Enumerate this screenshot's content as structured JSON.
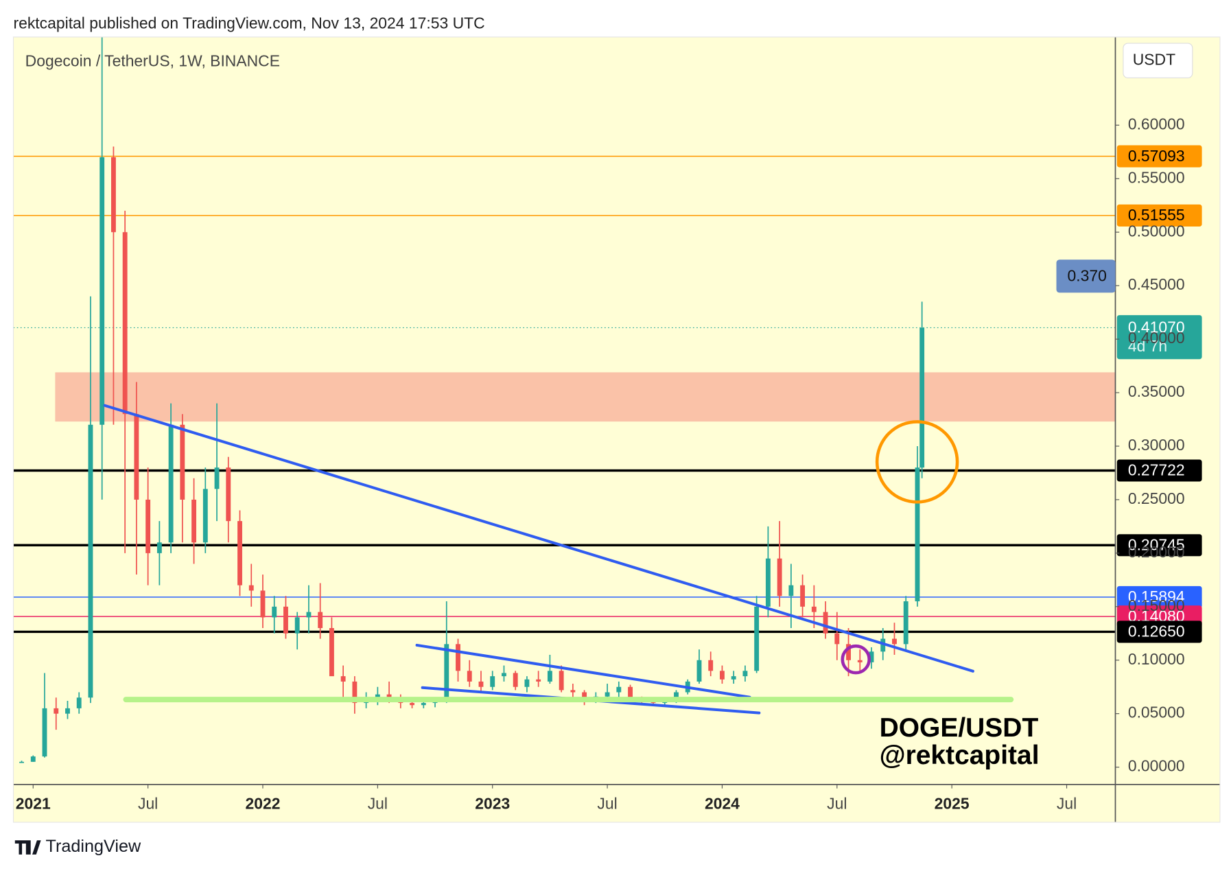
{
  "header": "rektcapital published on TradingView.com, Nov 13, 2024 17:53 UTC",
  "footer": "TradingView",
  "chart_data": {
    "type": "candlestick",
    "title": "Dogecoin / TetherUS, 1W, BINANCE",
    "currency": "USDT",
    "up_color": "#26a69a",
    "down_color": "#ef5350",
    "xlim": [
      2020.914,
      2025.712
    ],
    "xticks": [
      2021,
      {
        "value": 2021.5,
        "label": "Jul"
      },
      2022,
      {
        "value": 2022.5,
        "label": "Jul"
      },
      2023,
      {
        "value": 2023.5,
        "label": "Jul"
      },
      2024,
      {
        "value": 2024.5,
        "label": "Jul"
      },
      2025,
      {
        "value": 2025.5,
        "label": "Jul"
      }
    ],
    "ylim": [
      -0.0162,
      0.6824
    ],
    "yticks": [
      {
        "value": 0,
        "label": "0.00000"
      },
      {
        "value": 0.05,
        "label": "0.05000"
      },
      {
        "value": 0.1,
        "label": "0.10000"
      },
      {
        "value": 0.15,
        "label": "0.15000"
      },
      {
        "value": 0.2,
        "label": "0.20000"
      },
      {
        "value": 0.25,
        "label": "0.25000"
      },
      {
        "value": 0.3,
        "label": "0.30000"
      },
      {
        "value": 0.35,
        "label": "0.35000"
      },
      {
        "value": 0.4,
        "label": "0.40000"
      },
      {
        "value": 0.45,
        "label": "0.45000"
      },
      {
        "value": 0.5,
        "label": "0.50000"
      },
      {
        "value": 0.55,
        "label": "0.55000"
      },
      {
        "value": 0.6,
        "label": "0.60000"
      }
    ],
    "x": [
      2020.95,
      2021.0,
      2021.05,
      2021.1,
      2021.15,
      2021.2,
      2021.25,
      2021.3,
      2021.35,
      2021.4,
      2021.45,
      2021.5,
      2021.55,
      2021.6,
      2021.65,
      2021.7,
      2021.75,
      2021.8,
      2021.85,
      2021.9,
      2021.95,
      2022.0,
      2022.05,
      2022.1,
      2022.15,
      2022.2,
      2022.25,
      2022.3,
      2022.35,
      2022.4,
      2022.45,
      2022.5,
      2022.55,
      2022.6,
      2022.65,
      2022.7,
      2022.75,
      2022.8,
      2022.85,
      2022.9,
      2022.95,
      2023.0,
      2023.05,
      2023.1,
      2023.15,
      2023.2,
      2023.25,
      2023.3,
      2023.35,
      2023.4,
      2023.45,
      2023.5,
      2023.55,
      2023.6,
      2023.65,
      2023.7,
      2023.75,
      2023.8,
      2023.85,
      2023.9,
      2023.95,
      2024.0,
      2024.05,
      2024.1,
      2024.15,
      2024.2,
      2024.25,
      2024.3,
      2024.35,
      2024.4,
      2024.45,
      2024.5,
      2024.55,
      2024.6,
      2024.65,
      2024.7,
      2024.75,
      2024.8,
      2024.85,
      2024.87
    ],
    "open": [
      0.004,
      0.005,
      0.01,
      0.055,
      0.05,
      0.055,
      0.065,
      0.32,
      0.57,
      0.5,
      0.33,
      0.25,
      0.2,
      0.21,
      0.32,
      0.25,
      0.21,
      0.26,
      0.28,
      0.23,
      0.17,
      0.165,
      0.14,
      0.15,
      0.125,
      0.14,
      0.145,
      0.13,
      0.085,
      0.08,
      0.06,
      0.065,
      0.068,
      0.062,
      0.06,
      0.058,
      0.06,
      0.062,
      0.115,
      0.09,
      0.08,
      0.075,
      0.085,
      0.088,
      0.075,
      0.082,
      0.08,
      0.09,
      0.072,
      0.07,
      0.062,
      0.066,
      0.07,
      0.075,
      0.064,
      0.062,
      0.06,
      0.062,
      0.07,
      0.08,
      0.1,
      0.09,
      0.082,
      0.085,
      0.09,
      0.15,
      0.195,
      0.16,
      0.17,
      0.15,
      0.145,
      0.125,
      0.115,
      0.1,
      0.098,
      0.108,
      0.12,
      0.115,
      0.155,
      0.28
    ],
    "high": [
      0.006,
      0.011,
      0.088,
      0.065,
      0.062,
      0.07,
      0.44,
      0.69,
      0.58,
      0.52,
      0.36,
      0.28,
      0.23,
      0.34,
      0.33,
      0.27,
      0.28,
      0.34,
      0.29,
      0.24,
      0.19,
      0.18,
      0.16,
      0.16,
      0.145,
      0.17,
      0.172,
      0.14,
      0.095,
      0.085,
      0.07,
      0.075,
      0.08,
      0.068,
      0.065,
      0.065,
      0.065,
      0.155,
      0.12,
      0.1,
      0.09,
      0.09,
      0.095,
      0.09,
      0.085,
      0.09,
      0.105,
      0.095,
      0.078,
      0.072,
      0.07,
      0.078,
      0.08,
      0.077,
      0.066,
      0.065,
      0.065,
      0.072,
      0.082,
      0.11,
      0.108,
      0.095,
      0.09,
      0.095,
      0.16,
      0.225,
      0.23,
      0.19,
      0.18,
      0.17,
      0.155,
      0.145,
      0.13,
      0.11,
      0.112,
      0.13,
      0.135,
      0.16,
      0.3,
      0.435
    ],
    "low": [
      0.004,
      0.005,
      0.009,
      0.035,
      0.045,
      0.05,
      0.06,
      0.25,
      0.32,
      0.2,
      0.18,
      0.17,
      0.17,
      0.2,
      0.21,
      0.19,
      0.2,
      0.23,
      0.21,
      0.16,
      0.15,
      0.13,
      0.125,
      0.12,
      0.11,
      0.125,
      0.12,
      0.09,
      0.065,
      0.05,
      0.055,
      0.058,
      0.06,
      0.055,
      0.055,
      0.055,
      0.056,
      0.06,
      0.08,
      0.075,
      0.07,
      0.072,
      0.08,
      0.072,
      0.07,
      0.075,
      0.078,
      0.07,
      0.065,
      0.058,
      0.06,
      0.062,
      0.065,
      0.062,
      0.058,
      0.058,
      0.057,
      0.06,
      0.068,
      0.078,
      0.085,
      0.078,
      0.078,
      0.08,
      0.088,
      0.14,
      0.15,
      0.13,
      0.14,
      0.13,
      0.12,
      0.1,
      0.085,
      0.09,
      0.092,
      0.1,
      0.105,
      0.11,
      0.15,
      0.27
    ],
    "close": [
      0.005,
      0.01,
      0.055,
      0.05,
      0.055,
      0.065,
      0.32,
      0.57,
      0.5,
      0.33,
      0.25,
      0.2,
      0.21,
      0.32,
      0.25,
      0.21,
      0.26,
      0.28,
      0.23,
      0.17,
      0.165,
      0.14,
      0.15,
      0.125,
      0.14,
      0.145,
      0.13,
      0.085,
      0.08,
      0.06,
      0.065,
      0.068,
      0.062,
      0.06,
      0.058,
      0.06,
      0.062,
      0.115,
      0.09,
      0.08,
      0.075,
      0.085,
      0.088,
      0.075,
      0.082,
      0.08,
      0.09,
      0.072,
      0.07,
      0.062,
      0.066,
      0.07,
      0.075,
      0.064,
      0.062,
      0.06,
      0.062,
      0.07,
      0.08,
      0.1,
      0.09,
      0.082,
      0.085,
      0.09,
      0.15,
      0.195,
      0.16,
      0.17,
      0.15,
      0.145,
      0.125,
      0.115,
      0.1,
      0.098,
      0.108,
      0.12,
      0.115,
      0.155,
      0.28,
      0.4107
    ],
    "levels": [
      {
        "value": 0.57093,
        "label": "0.57093",
        "color": "#ff9800"
      },
      {
        "value": 0.51555,
        "label": "0.51555",
        "color": "#ff9800"
      },
      {
        "value": 0.27722,
        "label": "0.27722",
        "color": "#000000"
      },
      {
        "value": 0.20745,
        "label": "0.20745",
        "color": "#000000"
      },
      {
        "value": 0.15894,
        "label": "0.15894",
        "color": "#2962ff"
      },
      {
        "value": 0.1408,
        "label": "0.14080",
        "color": "#e91e63"
      },
      {
        "value": 0.1265,
        "label": "0.12650",
        "color": "#000000"
      }
    ],
    "current_price": {
      "value": 0.4107,
      "label": "0.41070",
      "countdown": "4d 7h",
      "color": "#26a69a"
    },
    "price_marker_label": "0.370",
    "zones": [
      {
        "from": 0.323,
        "to": 0.369,
        "x_start": 2021.096,
        "color": "#f9bba3"
      }
    ],
    "trendlines": [
      {
        "x": [
          2021.312,
          2025.092
        ],
        "y": [
          0.338,
          0.0897
        ],
        "color": "#2f5cf0"
      },
      {
        "x": [
          2022.671,
          2024.12
        ],
        "y": [
          0.114,
          0.0654
        ],
        "color": "#2f5cf0"
      },
      {
        "x": [
          2022.695,
          2024.161
        ],
        "y": [
          0.0743,
          0.0507
        ],
        "color": "#2f5cf0"
      },
      {
        "x": [
          2021.404,
          2025.257
        ],
        "y": [
          0.0632,
          0.0632
        ],
        "color": "#b6f28a"
      }
    ],
    "circles": [
      {
        "center": [
          2024.849,
          0.2853
        ],
        "color": "#ff9800"
      },
      {
        "center": [
          2024.582,
          0.1007
        ],
        "color": "#9c27b0"
      }
    ],
    "annotation_text": [
      "DOGE/USDT",
      "@rektcapital"
    ]
  }
}
